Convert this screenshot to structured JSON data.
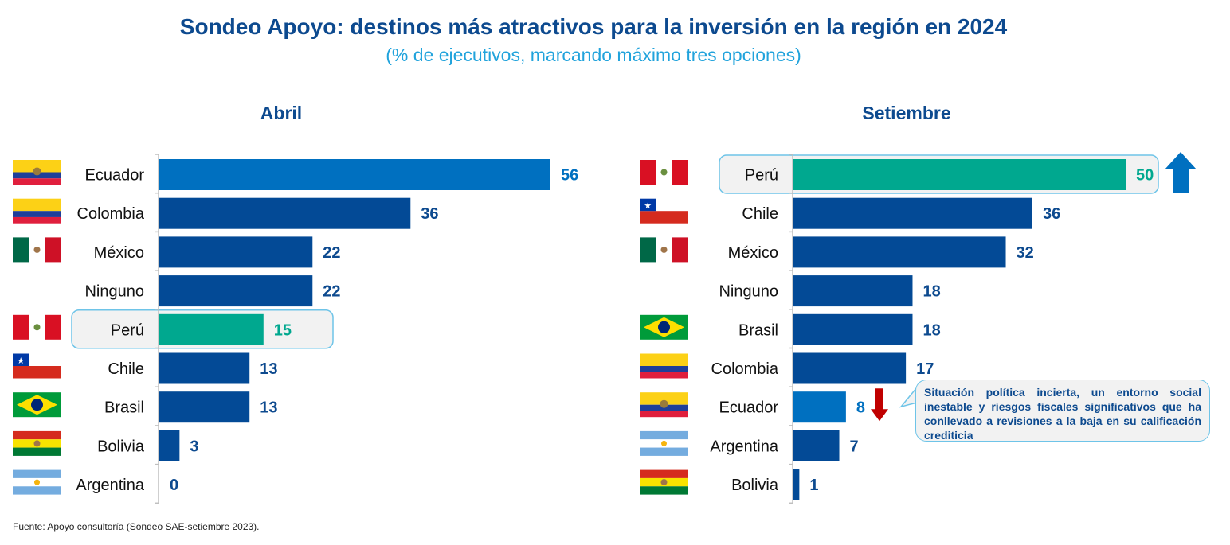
{
  "header": {
    "title": "Sondeo Apoyo: destinos más atractivos para la inversión en la región en 2024",
    "subtitle": "(% de ejecutivos, marcando máximo tres opciones)"
  },
  "colors": {
    "title": "#0d4a8f",
    "subtitle": "#21a3dc",
    "bar_default": "#034a96",
    "bar_ecuador": "#0070c0",
    "bar_peru": "#00a88f",
    "arrow_up": "#0070c0",
    "arrow_down": "#c00000",
    "highlight_border": "#6ec4e8",
    "highlight_fill": "#f2f2f2"
  },
  "chart_data": [
    {
      "type": "bar",
      "orientation": "horizontal",
      "title": "Abril",
      "categories": [
        "Ecuador",
        "Colombia",
        "México",
        "Ninguno",
        "Perú",
        "Chile",
        "Brasil",
        "Bolivia",
        "Argentina"
      ],
      "values": [
        56,
        36,
        22,
        22,
        15,
        13,
        13,
        3,
        0
      ],
      "flags": [
        "ecuador",
        "colombia",
        "mexico",
        null,
        "peru",
        "chile",
        "brasil",
        "bolivia",
        "argentina"
      ],
      "highlight": "Perú",
      "xlim": [
        0,
        56
      ],
      "xlabel": "",
      "ylabel": "",
      "grid": false
    },
    {
      "type": "bar",
      "orientation": "horizontal",
      "title": "Setiembre",
      "categories": [
        "Perú",
        "Chile",
        "México",
        "Ninguno",
        "Brasil",
        "Colombia",
        "Ecuador",
        "Argentina",
        "Bolivia"
      ],
      "values": [
        50,
        36,
        32,
        18,
        18,
        17,
        8,
        7,
        1
      ],
      "flags": [
        "peru",
        "chile",
        "mexico",
        null,
        "brasil",
        "colombia",
        "ecuador",
        "argentina",
        "bolivia"
      ],
      "highlight": "Perú",
      "annotations": [
        {
          "category": "Perú",
          "marker": "arrow-up"
        },
        {
          "category": "Ecuador",
          "marker": "arrow-down",
          "callout": "Situación política incierta, un entorno social inestable y riesgos fiscales significativos que ha conllevado a revisiones a la baja en su calificación crediticia"
        }
      ],
      "xlim": [
        0,
        56
      ],
      "xlabel": "",
      "ylabel": "",
      "grid": false
    }
  ],
  "footer": {
    "source": "Fuente: Apoyo consultoría (Sondeo SAE-setiembre 2023)."
  }
}
